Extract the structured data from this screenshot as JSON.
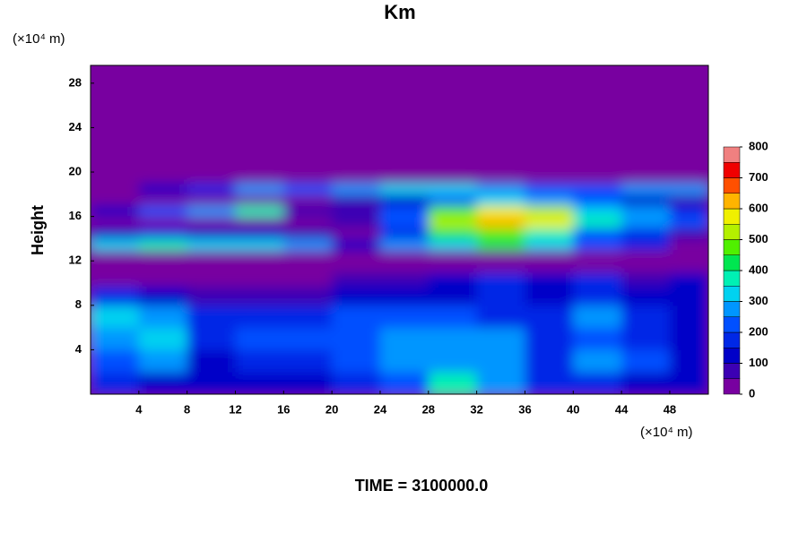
{
  "chart_data": {
    "type": "contour",
    "title": "Km",
    "y_label": "Height",
    "y_unit": "(×10⁴ m)",
    "x_unit": "(×10⁴ m)",
    "footer": "TIME = 3100000.0",
    "xlim": [
      0,
      51.2
    ],
    "ylim": [
      0,
      29.6
    ],
    "xticks": [
      4,
      8,
      12,
      16,
      20,
      24,
      28,
      32,
      36,
      40,
      44,
      48
    ],
    "yticks": [
      4,
      8,
      12,
      16,
      20,
      24,
      28
    ],
    "x": [
      2,
      6,
      10,
      14,
      18,
      22,
      26,
      30,
      34,
      38,
      42,
      46,
      50
    ],
    "y": [
      1,
      3,
      5,
      7,
      9,
      10.5,
      11.5,
      12.5,
      13.5,
      14.5,
      15.5,
      16.5,
      17.5,
      18.5,
      19.5,
      21,
      25
    ],
    "z": [
      [
        150,
        120,
        100,
        120,
        100,
        150,
        200,
        350,
        250,
        150,
        150,
        120,
        100
      ],
      [
        200,
        250,
        120,
        150,
        180,
        200,
        280,
        280,
        250,
        150,
        250,
        200,
        120
      ],
      [
        250,
        300,
        150,
        200,
        200,
        220,
        280,
        280,
        250,
        150,
        220,
        180,
        120
      ],
      [
        300,
        250,
        150,
        180,
        150,
        200,
        220,
        200,
        180,
        150,
        250,
        150,
        120
      ],
      [
        150,
        120,
        80,
        80,
        80,
        100,
        120,
        120,
        150,
        120,
        150,
        100,
        100
      ],
      [
        20,
        10,
        0,
        0,
        0,
        50,
        80,
        100,
        150,
        100,
        150,
        80,
        100
      ],
      [
        0,
        0,
        0,
        0,
        0,
        0,
        0,
        0,
        0,
        0,
        0,
        0,
        0
      ],
      [
        0,
        0,
        0,
        0,
        0,
        0,
        0,
        0,
        0,
        0,
        0,
        0,
        0
      ],
      [
        300,
        350,
        300,
        300,
        250,
        100,
        250,
        300,
        400,
        300,
        200,
        150,
        0
      ],
      [
        100,
        150,
        100,
        100,
        50,
        0,
        150,
        400,
        450,
        350,
        200,
        150,
        50
      ],
      [
        0,
        0,
        0,
        0,
        0,
        50,
        200,
        500,
        600,
        550,
        350,
        250,
        200
      ],
      [
        100,
        200,
        250,
        350,
        50,
        50,
        200,
        450,
        550,
        500,
        300,
        250,
        150
      ],
      [
        0,
        0,
        0,
        0,
        0,
        50,
        100,
        200,
        300,
        250,
        200,
        100,
        50
      ],
      [
        0,
        100,
        150,
        250,
        200,
        250,
        300,
        300,
        250,
        200,
        200,
        250,
        250
      ],
      [
        0,
        0,
        0,
        0,
        0,
        0,
        0,
        0,
        0,
        0,
        0,
        0,
        0
      ],
      [
        0,
        0,
        0,
        0,
        0,
        0,
        0,
        0,
        0,
        0,
        0,
        0,
        0
      ],
      [
        0,
        0,
        0,
        0,
        0,
        0,
        0,
        0,
        0,
        0,
        0,
        0,
        0
      ]
    ],
    "levels": [
      0,
      50,
      100,
      150,
      200,
      250,
      300,
      350,
      400,
      450,
      500,
      550,
      600,
      650,
      700,
      750,
      800
    ],
    "colors": [
      "#7800a0",
      "#3c00b4",
      "#0000c8",
      "#0028e6",
      "#0050ff",
      "#0096ff",
      "#00d2f0",
      "#00f0b4",
      "#00e650",
      "#50f000",
      "#b4f000",
      "#f0f000",
      "#ffb400",
      "#ff5000",
      "#f00000",
      "#f08080"
    ],
    "colorbar_ticks": [
      0,
      100,
      200,
      300,
      400,
      500,
      600,
      700,
      800
    ]
  }
}
